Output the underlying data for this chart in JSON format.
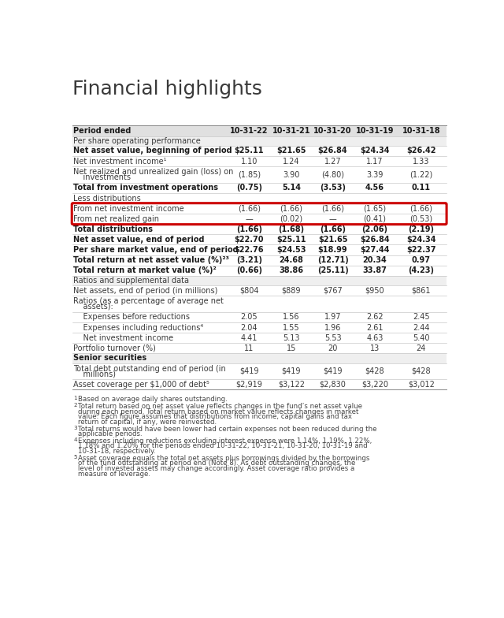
{
  "title": "Financial highlights",
  "columns": [
    "Period ended",
    "10-31-22",
    "10-31-21",
    "10-31-20",
    "10-31-19",
    "10-31-18"
  ],
  "rows": [
    {
      "label": "Period ended",
      "values": [
        "10-31-22",
        "10-31-21",
        "10-31-20",
        "10-31-19",
        "10-31-18"
      ],
      "style": "header"
    },
    {
      "label": "Per share operating performance",
      "values": [
        "",
        "",
        "",
        "",
        ""
      ],
      "style": "subheader"
    },
    {
      "label": "Net asset value, beginning of period",
      "values": [
        "$25.11",
        "$21.65",
        "$26.84",
        "$24.34",
        "$26.42"
      ],
      "style": "bold"
    },
    {
      "label": "Net investment income¹",
      "values": [
        "1.10",
        "1.24",
        "1.27",
        "1.17",
        "1.33"
      ],
      "style": "normal"
    },
    {
      "label": "Net realized and unrealized gain (loss) on\n    investments",
      "values": [
        "(1.85)",
        "3.90",
        "(4.80)",
        "3.39",
        "(1.22)"
      ],
      "style": "normal",
      "multiline": true
    },
    {
      "label": "Total from investment operations",
      "values": [
        "(0.75)",
        "5.14",
        "(3.53)",
        "4.56",
        "0.11"
      ],
      "style": "bold"
    },
    {
      "label": "Less distributions",
      "values": [
        "",
        "",
        "",
        "",
        ""
      ],
      "style": "normal_label"
    },
    {
      "label": "From net investment income",
      "values": [
        "(1.66)",
        "(1.66)",
        "(1.66)",
        "(1.65)",
        "(1.66)"
      ],
      "style": "normal",
      "highlight": true
    },
    {
      "label": "From net realized gain",
      "values": [
        "—",
        "(0.02)",
        "—",
        "(0.41)",
        "(0.53)"
      ],
      "style": "normal",
      "highlight": true
    },
    {
      "label": "Total distributions",
      "values": [
        "(1.66)",
        "(1.68)",
        "(1.66)",
        "(2.06)",
        "(2.19)"
      ],
      "style": "bold"
    },
    {
      "label": "Net asset value, end of period",
      "values": [
        "$22.70",
        "$25.11",
        "$21.65",
        "$26.84",
        "$24.34"
      ],
      "style": "bold"
    },
    {
      "label": "Per share market value, end of period",
      "values": [
        "$22.76",
        "$24.53",
        "$18.99",
        "$27.44",
        "$22.37"
      ],
      "style": "bold"
    },
    {
      "label": "Total return at net asset value (%)²³",
      "values": [
        "(3.21)",
        "24.68",
        "(12.71)",
        "20.34",
        "0.97"
      ],
      "style": "bold"
    },
    {
      "label": "Total return at market value (%)²",
      "values": [
        "(0.66)",
        "38.86",
        "(25.11)",
        "33.87",
        "(4.23)"
      ],
      "style": "bold"
    },
    {
      "label": "Ratios and supplemental data",
      "values": [
        "",
        "",
        "",
        "",
        ""
      ],
      "style": "subheader"
    },
    {
      "label": "Net assets, end of period (in millions)",
      "values": [
        "$804",
        "$889",
        "$767",
        "$950",
        "$861"
      ],
      "style": "normal"
    },
    {
      "label": "Ratios (as a percentage of average net\n    assets):",
      "values": [
        "",
        "",
        "",
        "",
        ""
      ],
      "style": "normal_label",
      "multiline": true
    },
    {
      "label": "    Expenses before reductions",
      "values": [
        "2.05",
        "1.56",
        "1.97",
        "2.62",
        "2.45"
      ],
      "style": "normal"
    },
    {
      "label": "    Expenses including reductions⁴",
      "values": [
        "2.04",
        "1.55",
        "1.96",
        "2.61",
        "2.44"
      ],
      "style": "normal"
    },
    {
      "label": "    Net investment income",
      "values": [
        "4.41",
        "5.13",
        "5.53",
        "4.63",
        "5.40"
      ],
      "style": "normal"
    },
    {
      "label": "Portfolio turnover (%)",
      "values": [
        "11",
        "15",
        "20",
        "13",
        "24"
      ],
      "style": "normal"
    },
    {
      "label": "Senior securities",
      "values": [
        "",
        "",
        "",
        "",
        ""
      ],
      "style": "bold_subheader"
    },
    {
      "label": "Total debt outstanding end of period (in\n    millions)",
      "values": [
        "$419",
        "$419",
        "$419",
        "$428",
        "$428"
      ],
      "style": "normal",
      "multiline": true
    },
    {
      "label": "Asset coverage per $1,000 of debt⁵",
      "values": [
        "$2,919",
        "$3,122",
        "$2,830",
        "$3,220",
        "$3,012"
      ],
      "style": "normal"
    }
  ],
  "footnotes": [
    {
      "super": "1",
      "text": "Based on average daily shares outstanding."
    },
    {
      "super": "2",
      "text": "Total return based on net asset value reflects changes in the fund’s net asset value during each period. Total return based on market value reflects changes in market value. Each figure assumes that distributions from income, capital gains and tax return of capital, if any, were reinvested."
    },
    {
      "super": "3",
      "text": "Total returns would have been lower had certain expenses not been reduced during the applicable periods."
    },
    {
      "super": "4",
      "text": "Expenses including reductions excluding interest expense were 1.14%, 1.19%, 1.22%, 1.18% and 1.20% for the periods ended 10-31-22, 10-31-21, 10-31-20, 10-31-19 and 10-31-18, respectively."
    },
    {
      "super": "5",
      "text": "Asset coverage equals the total net assets plus borrowings divided by the borrowings of the fund outstanding at period end (Note 8). As debt outstanding changes, the level of invested assets may change accordingly. Asset coverage ratio provides a measure of leverage."
    }
  ],
  "bg_color": "#ffffff",
  "header_bg": "#e0e0e0",
  "subheader_bg": "#efefef",
  "highlight_color": "#cc0000",
  "text_color": "#3a3a3a",
  "bold_color": "#1a1a1a",
  "title_color": "#3a3a3a",
  "line_color": "#bbbbbb",
  "alt_row_bg": "#f7f7f7"
}
